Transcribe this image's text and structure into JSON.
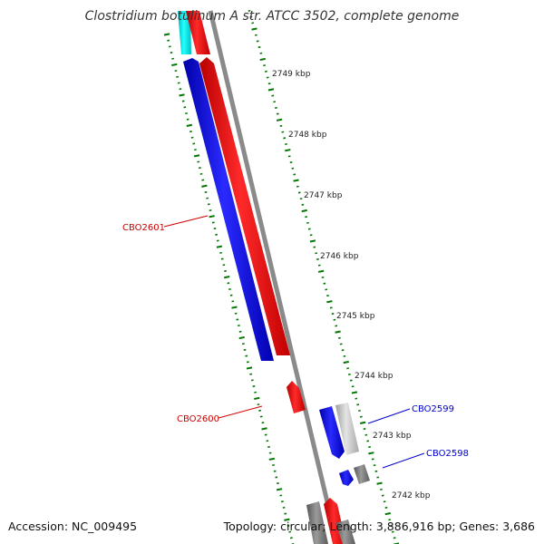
{
  "title": "Clostridium botulinum A str. ATCC 3502, complete genome",
  "accession": "Accession: NC_009495",
  "stats": "Topology: circular; Length: 3,886,916 bp; Genes: 3,686",
  "ruler_labels": [
    "2749 kbp",
    "2748 kbp",
    "2747 kbp",
    "2746 kbp",
    "2745 kbp",
    "2744 kbp",
    "2743 kbp",
    "2742 kbp"
  ],
  "gene_labels": [
    {
      "name": "CBO2601",
      "color": "#cc0000"
    },
    {
      "name": "CBO2600",
      "color": "#cc0000"
    },
    {
      "name": "CBO2599",
      "color": "#0000cc"
    },
    {
      "name": "CBO2598",
      "color": "#0000cc"
    }
  ],
  "colors": {
    "forward_strand": "#ff0000",
    "reverse_strand": "#0000ff",
    "cyan_feature": "#00e5e5",
    "gray_feature": "#808080",
    "light_gray_feature": "#c8c8c8",
    "backbone": "#8c8c8c",
    "tick": "#007700"
  }
}
